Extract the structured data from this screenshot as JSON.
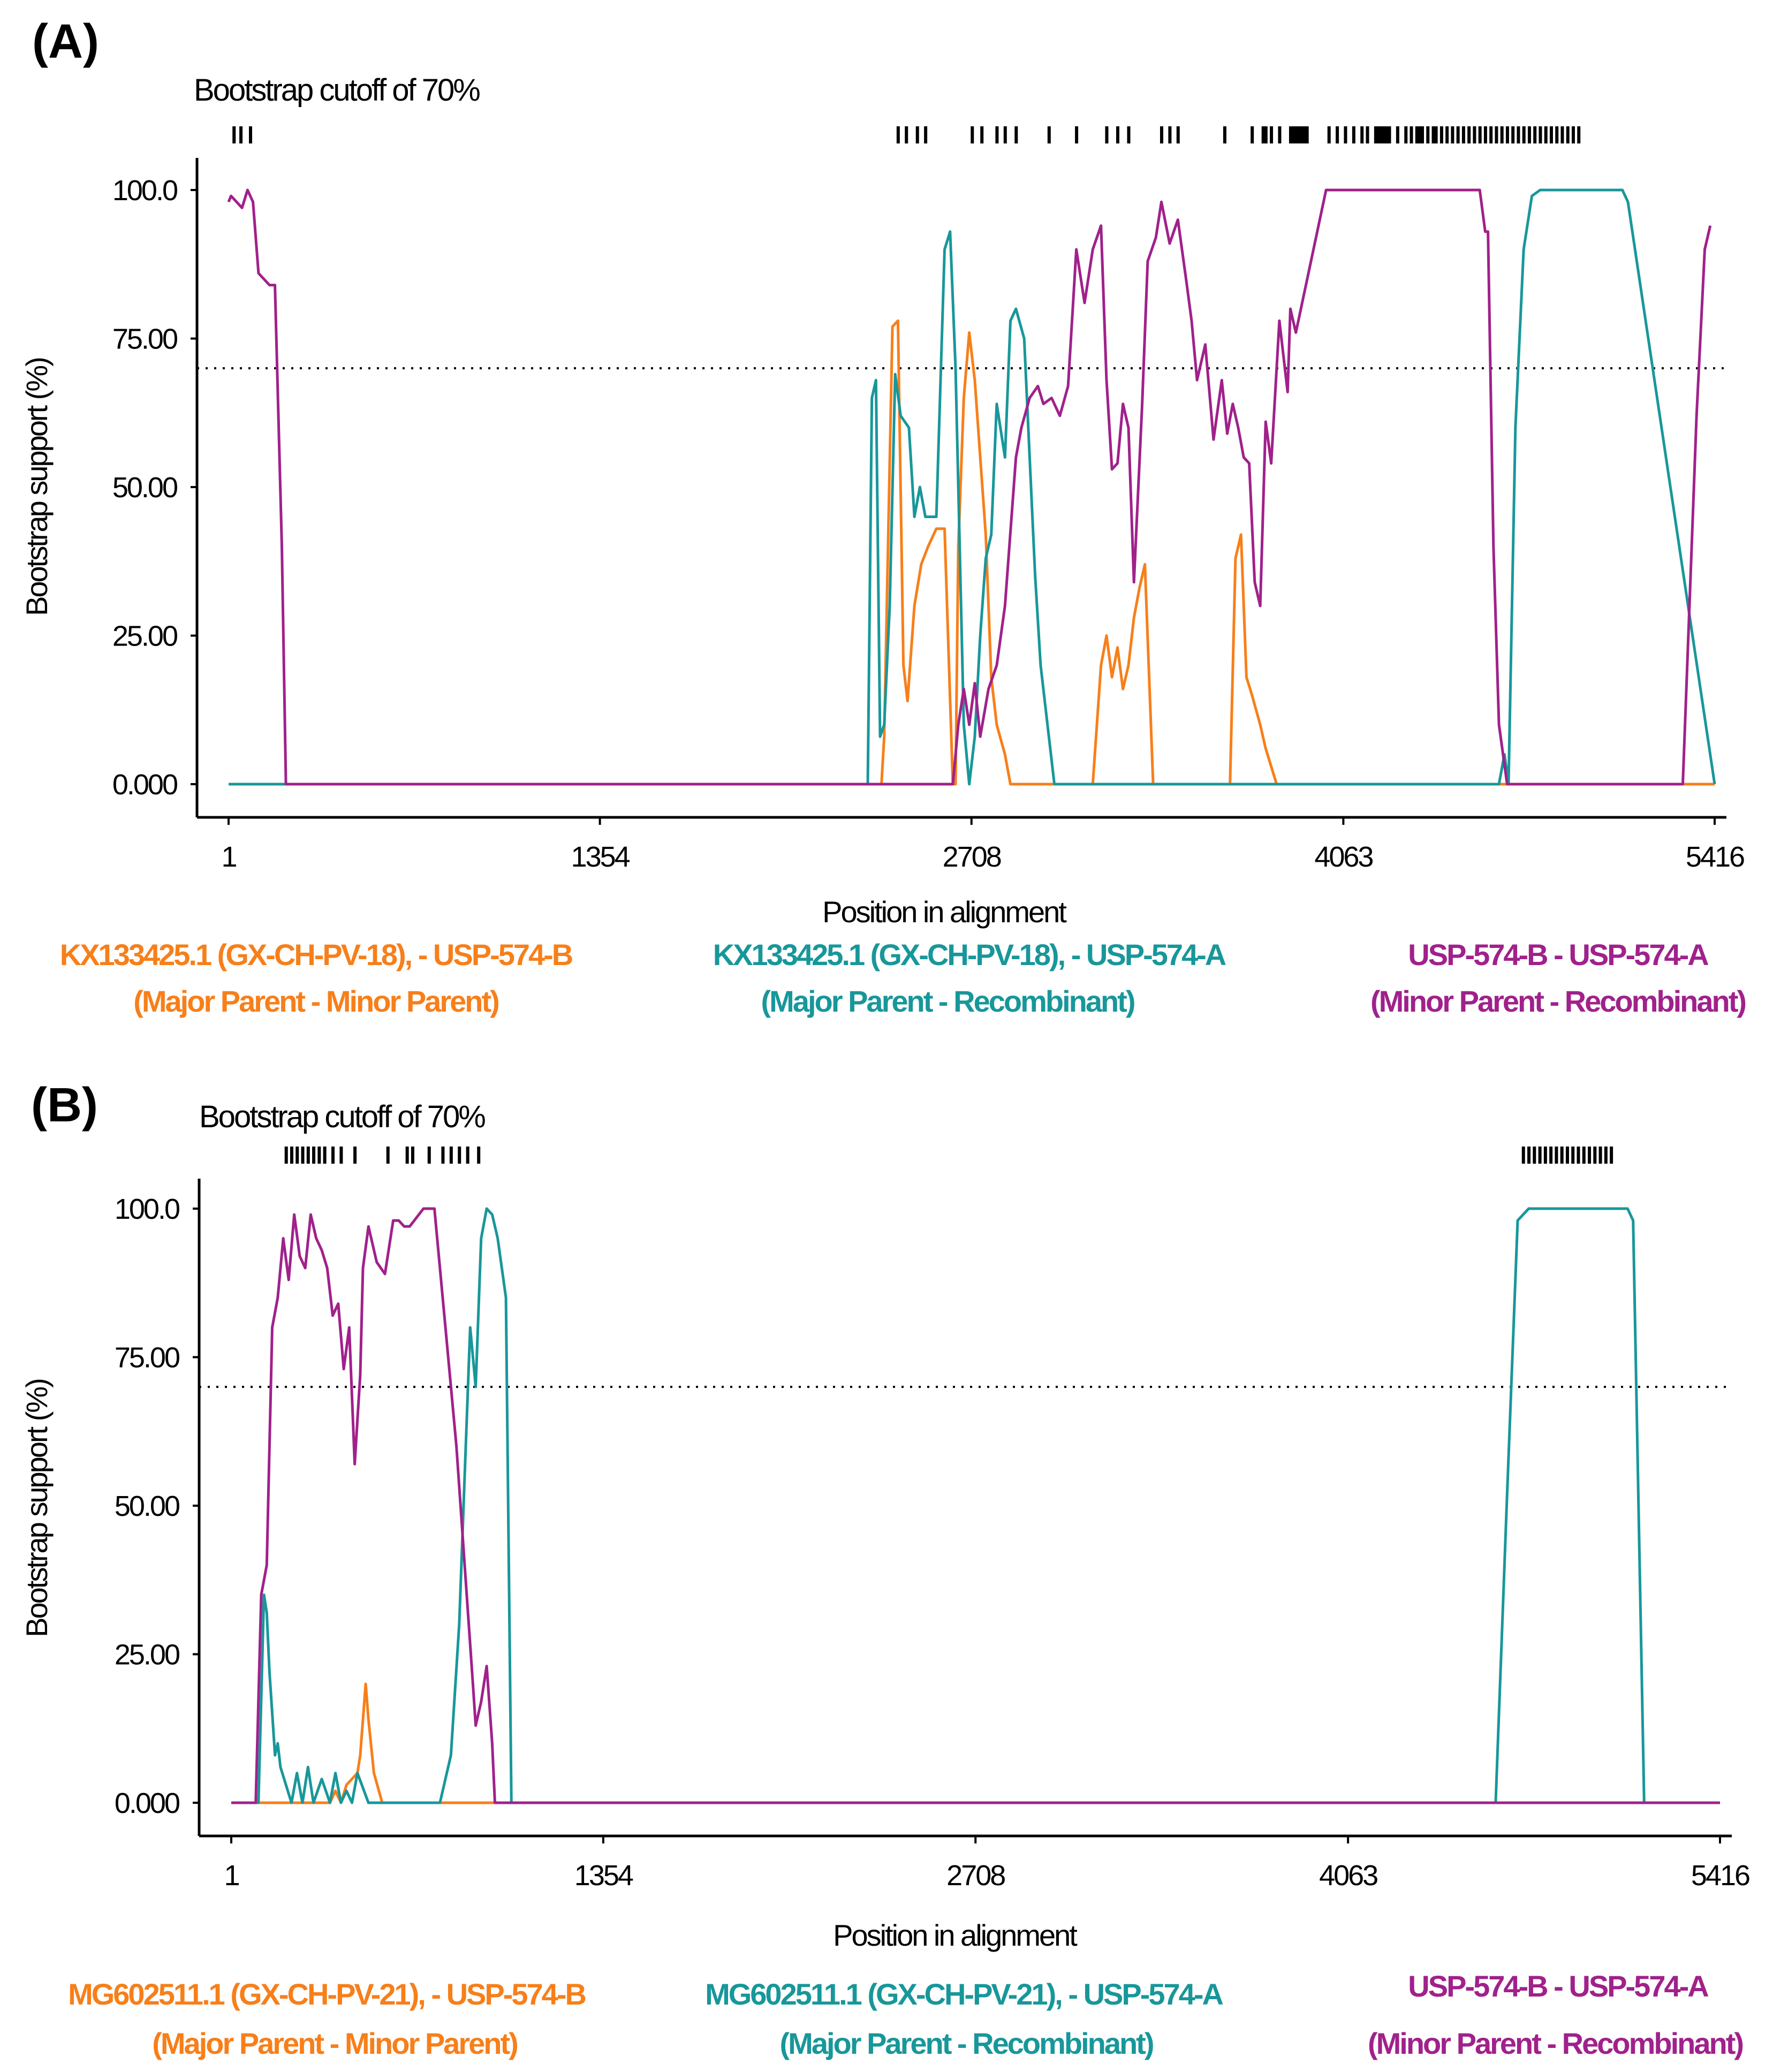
{
  "colors": {
    "major_minor": "#f77f1a",
    "major_recomb": "#18979a",
    "minor_recomb": "#a0218b"
  },
  "chart_data": [
    {
      "type": "line",
      "panel": "(A)",
      "cutoff_title": "Bootstrap cutoff of 70%",
      "cutoff": 70,
      "xlabel": "Position in alignment",
      "ylabel": "Bootstrap support (%)",
      "xlim": [
        1,
        5416
      ],
      "ylim": [
        0,
        100
      ],
      "xticks": [
        1,
        1354,
        2708,
        4063,
        5416
      ],
      "xtick_labels": [
        "1",
        "1354",
        "2708",
        "4063",
        "5416"
      ],
      "yticks": [
        0,
        25,
        50,
        75,
        100
      ],
      "ytick_labels": [
        "0.000",
        "25.00",
        "50.00",
        "75.00",
        "100.0"
      ],
      "significant_positions": [
        20,
        45,
        80,
        2440,
        2470,
        2510,
        2540,
        2710,
        2745,
        2800,
        2830,
        2870,
        2990,
        3090,
        3200,
        3240,
        3280,
        3400,
        3430,
        3460,
        3630,
        3730,
        3770,
        3780,
        3800,
        3830,
        3870,
        3880,
        3890,
        3900,
        3910,
        3920,
        3930,
        4010,
        4040,
        4070,
        4100,
        4130,
        4150,
        4180,
        4190,
        4200,
        4210,
        4220,
        4230,
        4260,
        4290,
        4310,
        4330,
        4340,
        4350,
        4370,
        4390,
        4400,
        4420,
        4440,
        4460,
        4480,
        4500,
        4520,
        4540,
        4560,
        4580,
        4600,
        4620,
        4640,
        4660,
        4680,
        4700,
        4720,
        4740,
        4760,
        4780,
        4800,
        4820,
        4840,
        4860,
        4880,
        4900,
        4920
      ],
      "legend": [
        {
          "name": "KX133425.1 (GX-CH-PV-18), - USP-574-B",
          "role": "(Major Parent - Minor Parent)",
          "color_key": "major_minor"
        },
        {
          "name": "KX133425.1 (GX-CH-PV-18), - USP-574-A",
          "role": "(Major Parent - Recombinant)",
          "color_key": "major_recomb"
        },
        {
          "name": "USP-574-B - USP-574-A",
          "role": "(Minor Parent - Recombinant)",
          "color_key": "minor_recomb"
        }
      ],
      "series": [
        {
          "name": "KX133425.1 (GX-CH-PV-18), - USP-574-B",
          "color_key": "major_minor",
          "x": [
            1,
            2380,
            2390,
            2420,
            2440,
            2460,
            2475,
            2500,
            2525,
            2550,
            2580,
            2610,
            2640,
            2650,
            2660,
            2680,
            2700,
            2720,
            2740,
            2760,
            2780,
            2800,
            2830,
            2850,
            2880,
            3150,
            3180,
            3200,
            3220,
            3240,
            3260,
            3280,
            3300,
            3320,
            3340,
            3370,
            3650,
            3670,
            3690,
            3710,
            3730,
            3760,
            3780,
            3820,
            5416
          ],
          "y": [
            0,
            0,
            8,
            77,
            78,
            20,
            14,
            30,
            37,
            40,
            43,
            43,
            0,
            0,
            40,
            65,
            76,
            68,
            55,
            42,
            18,
            10,
            5,
            0,
            0,
            0,
            20,
            25,
            18,
            23,
            16,
            20,
            28,
            33,
            37,
            0,
            0,
            38,
            42,
            18,
            15,
            10,
            6,
            0,
            0
          ]
        },
        {
          "name": "KX133425.1 (GX-CH-PV-18), - USP-574-A",
          "color_key": "major_recomb",
          "x": [
            1,
            2330,
            2345,
            2360,
            2375,
            2390,
            2410,
            2430,
            2450,
            2480,
            2500,
            2520,
            2540,
            2580,
            2610,
            2630,
            2650,
            2680,
            2700,
            2720,
            2740,
            2760,
            2780,
            2800,
            2830,
            2850,
            2870,
            2900,
            2920,
            2940,
            2960,
            2990,
            3010,
            4630,
            4650,
            4665,
            4690,
            4720,
            4750,
            4780,
            5080,
            5100,
            5416
          ],
          "y": [
            0,
            0,
            65,
            68,
            8,
            10,
            30,
            69,
            62,
            60,
            45,
            50,
            45,
            45,
            90,
            93,
            70,
            10,
            0,
            8,
            25,
            38,
            42,
            64,
            55,
            78,
            80,
            75,
            55,
            35,
            20,
            8,
            0,
            0,
            5,
            0,
            60,
            90,
            99,
            100,
            100,
            98,
            0
          ]
        },
        {
          "name": "USP-574-B - USP-574-A",
          "color_key": "minor_recomb",
          "x": [
            1,
            10,
            30,
            50,
            70,
            90,
            110,
            150,
            170,
            195,
            210,
            2640,
            2660,
            2680,
            2700,
            2720,
            2740,
            2770,
            2800,
            2830,
            2870,
            2890,
            2920,
            2950,
            2970,
            3000,
            3030,
            3060,
            3090,
            3120,
            3150,
            3180,
            3200,
            3220,
            3240,
            3260,
            3280,
            3300,
            3330,
            3350,
            3380,
            3400,
            3430,
            3460,
            3490,
            3510,
            3530,
            3560,
            3590,
            3620,
            3640,
            3660,
            3680,
            3700,
            3720,
            3740,
            3760,
            3780,
            3800,
            3830,
            3860,
            3870,
            3890,
            4000,
            4560,
            4580,
            4590,
            4610,
            4630,
            4660,
            4680,
            4720,
            5300,
            5350,
            5380,
            5400
          ],
          "y": [
            98,
            99,
            98,
            97,
            100,
            98,
            86,
            84,
            84,
            40,
            0,
            0,
            10,
            16,
            10,
            17,
            8,
            16,
            20,
            30,
            55,
            60,
            65,
            67,
            64,
            65,
            62,
            67,
            90,
            81,
            90,
            94,
            68,
            53,
            54,
            64,
            60,
            34,
            64,
            88,
            92,
            98,
            91,
            95,
            85,
            78,
            68,
            74,
            58,
            68,
            59,
            64,
            60,
            55,
            54,
            34,
            30,
            61,
            54,
            78,
            66,
            80,
            76,
            100,
            100,
            93,
            93,
            40,
            10,
            0,
            0,
            0,
            0,
            62,
            90,
            94
          ]
        }
      ]
    },
    {
      "type": "line",
      "panel": "(B)",
      "cutoff_title": "Bootstrap cutoff of 70%",
      "cutoff": 70,
      "xlabel": "Position in alignment",
      "ylabel": "Bootstrap support (%)",
      "xlim": [
        1,
        5416
      ],
      "ylim": [
        0,
        100
      ],
      "xticks": [
        1,
        1354,
        2708,
        4063,
        5416
      ],
      "xtick_labels": [
        "1",
        "1354",
        "2708",
        "4063",
        "5416"
      ],
      "yticks": [
        0,
        25,
        50,
        75,
        100
      ],
      "ytick_labels": [
        "0.000",
        "25.00",
        "50.00",
        "75.00",
        "100.0"
      ],
      "significant_positions": [
        200,
        220,
        240,
        260,
        280,
        300,
        320,
        340,
        370,
        400,
        450,
        570,
        640,
        660,
        720,
        770,
        800,
        830,
        860,
        900,
        4700,
        4720,
        4740,
        4760,
        4780,
        4800,
        4820,
        4840,
        4860,
        4880,
        4900,
        4920,
        4940,
        4960,
        4980,
        5000,
        5020
      ],
      "legend": [
        {
          "name": "MG602511.1 (GX-CH-PV-21), - USP-574-B",
          "role": "(Major Parent - Minor Parent)",
          "color_key": "major_minor"
        },
        {
          "name": "MG602511.1 (GX-CH-PV-21), - USP-574-A",
          "role": "(Major Parent - Recombinant)",
          "color_key": "major_recomb"
        },
        {
          "name": "USP-574-B - USP-574-A",
          "role": "(Minor Parent - Recombinant)",
          "color_key": "minor_recomb"
        }
      ],
      "series": [
        {
          "name": "MG602511.1 (GX-CH-PV-21), - USP-574-B",
          "color_key": "major_minor",
          "x": [
            1,
            360,
            380,
            400,
            420,
            440,
            460,
            470,
            490,
            500,
            520,
            550,
            5416
          ],
          "y": [
            0,
            0,
            2,
            0,
            3,
            4,
            5,
            8,
            20,
            14,
            5,
            0,
            0
          ]
        },
        {
          "name": "MG602511.1 (GX-CH-PV-21), - USP-574-A",
          "color_key": "major_recomb",
          "x": [
            1,
            100,
            120,
            130,
            140,
            160,
            170,
            180,
            200,
            220,
            240,
            260,
            280,
            300,
            330,
            360,
            380,
            400,
            420,
            440,
            460,
            500,
            760,
            800,
            830,
            850,
            870,
            890,
            910,
            930,
            950,
            970,
            1000,
            1020,
            1040,
            1060,
            4600,
            4640,
            4680,
            4720,
            4760,
            5080,
            5100,
            5140,
            5416
          ],
          "y": [
            0,
            0,
            35,
            32,
            22,
            8,
            10,
            6,
            3,
            0,
            5,
            0,
            6,
            0,
            4,
            0,
            5,
            0,
            2,
            0,
            5,
            0,
            0,
            8,
            30,
            55,
            80,
            70,
            95,
            100,
            99,
            95,
            85,
            0,
            0,
            0,
            0,
            50,
            98,
            100,
            100,
            100,
            98,
            0,
            0
          ]
        },
        {
          "name": "USP-574-B - USP-574-A",
          "color_key": "minor_recomb",
          "x": [
            1,
            90,
            110,
            130,
            150,
            170,
            190,
            210,
            230,
            250,
            270,
            290,
            310,
            330,
            350,
            370,
            390,
            410,
            430,
            450,
            470,
            480,
            500,
            530,
            560,
            590,
            610,
            630,
            650,
            700,
            740,
            780,
            820,
            850,
            880,
            890,
            910,
            930,
            950,
            960,
            1000,
            1050,
            5416
          ],
          "y": [
            0,
            0,
            35,
            40,
            80,
            85,
            95,
            88,
            99,
            92,
            90,
            99,
            95,
            93,
            90,
            82,
            84,
            73,
            80,
            57,
            72,
            90,
            97,
            91,
            89,
            98,
            98,
            97,
            97,
            100,
            100,
            80,
            60,
            40,
            20,
            13,
            17,
            23,
            10,
            0,
            0,
            0,
            0
          ]
        }
      ]
    }
  ]
}
